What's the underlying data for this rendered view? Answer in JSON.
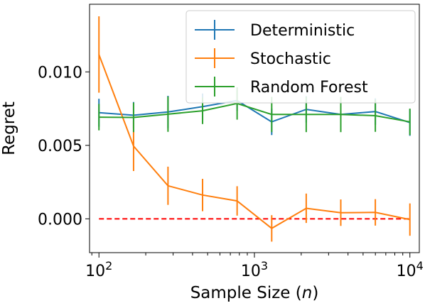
{
  "chart_data": {
    "type": "line",
    "xlabel_main": "Sample Size (",
    "xlabel_var": "n",
    "xlabel_close": ")",
    "ylabel": "Regret",
    "xscale": "log",
    "xlim": [
      87,
      11500
    ],
    "ylim": [
      -0.0023,
      0.0146
    ],
    "grid": false,
    "legend_position": "top-right",
    "x_ticks": [
      {
        "value": 100,
        "base": "10",
        "exp": "2"
      },
      {
        "value": 1000,
        "base": "10",
        "exp": "3"
      },
      {
        "value": 10000,
        "base": "10",
        "exp": "4"
      }
    ],
    "y_ticks": [
      {
        "value": 0.0,
        "label": "0.000"
      },
      {
        "value": 0.005,
        "label": "0.005"
      },
      {
        "value": 0.01,
        "label": "0.010"
      }
    ],
    "x": [
      100,
      167,
      278,
      464,
      774,
      1292,
      2154,
      3594,
      5995,
      10000
    ],
    "series": [
      {
        "name": "Deterministic",
        "color": "#1f77b4",
        "values": [
          0.00722,
          0.00705,
          0.00727,
          0.00763,
          0.00805,
          0.0066,
          0.00745,
          0.0071,
          0.0073,
          0.00655
        ],
        "errors": [
          0.00095,
          0.0009,
          0.0011,
          0.0009,
          0.0007,
          0.0009,
          0.0009,
          0.0009,
          0.0009,
          0.0009
        ]
      },
      {
        "name": "Stochastic",
        "color": "#ff7f0e",
        "values": [
          0.01118,
          0.00495,
          0.00225,
          0.00162,
          0.00122,
          -0.00065,
          0.00072,
          0.00042,
          0.00044,
          -5e-05
        ],
        "errors": [
          0.0026,
          0.0017,
          0.0013,
          0.0011,
          0.001,
          0.0009,
          0.001,
          0.0009,
          0.0009,
          0.0011
        ]
      },
      {
        "name": "Random Forest",
        "color": "#2ca02c",
        "values": [
          0.00692,
          0.0069,
          0.00712,
          0.00735,
          0.00785,
          0.0071,
          0.0071,
          0.0071,
          0.00702,
          0.0066
        ],
        "errors": [
          0.0009,
          0.001,
          0.0012,
          0.0009,
          0.0011,
          0.0012,
          0.0012,
          0.0012,
          0.0011,
          0.0009
        ]
      }
    ],
    "reference_line": {
      "y": 0.0,
      "x_from": 100,
      "x_to": 10000,
      "color": "#ff0000",
      "style": "dashed"
    }
  }
}
